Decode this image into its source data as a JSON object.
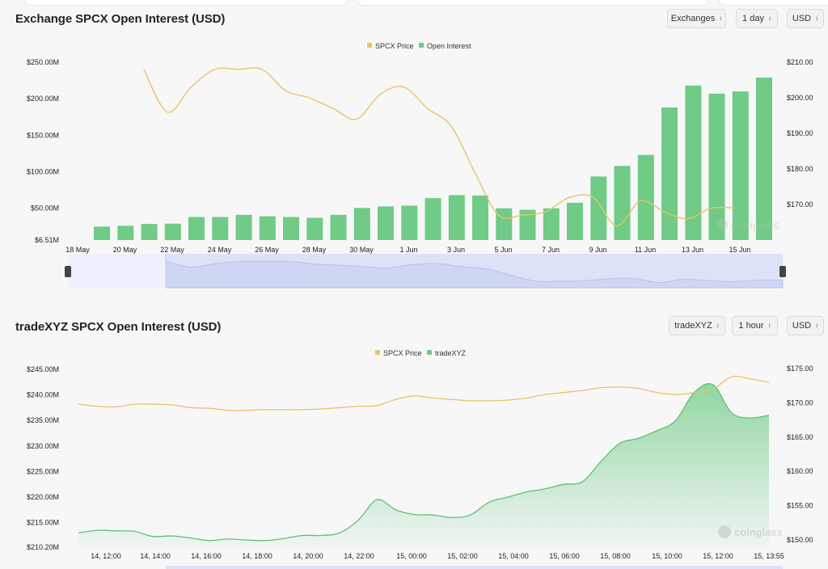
{
  "panel1": {
    "title": "Exchange SPCX Open Interest (USD)",
    "controls": {
      "exchange": "Exchanges",
      "interval": "1 day",
      "currency": "USD"
    },
    "watermark": "coinglass"
  },
  "panel2": {
    "title": "tradeXYZ SPCX Open Interest (USD)",
    "controls": {
      "exchange": "tradeXYZ",
      "interval": "1 hour",
      "currency": "USD"
    },
    "watermark": "coinglass"
  },
  "chart_data": [
    {
      "type": "bar",
      "series": [
        {
          "name": "SPCX Price",
          "type": "line",
          "axis": "right",
          "color": "#e8c468",
          "values": [
            null,
            null,
            null,
            208,
            196,
            203,
            208,
            208,
            208,
            202,
            200,
            197,
            194,
            201,
            203,
            197,
            192,
            179,
            167,
            167,
            168,
            172,
            172,
            164,
            171,
            168,
            166,
            169,
            169
          ]
        },
        {
          "name": "Open Interest",
          "type": "bar",
          "axis": "left",
          "color": "#6fcb85",
          "values": [
            25000000,
            26000000,
            28500000,
            29000000,
            38000000,
            38000000,
            41000000,
            39000000,
            38000000,
            37000000,
            41000000,
            50500000,
            52500000,
            53500000,
            64000000,
            68000000,
            67500000,
            50000000,
            48000000,
            50000000,
            57500000,
            93500000,
            108000000,
            123000000,
            188000000,
            218000000,
            207000000,
            210000000,
            229000000
          ]
        }
      ],
      "x": [
        "18 May",
        "19 May",
        "20 May",
        "21 May",
        "22 May",
        "23 May",
        "24 May",
        "25 May",
        "26 May",
        "27 May",
        "28 May",
        "29 May",
        "30 May",
        "31 May",
        "1 Jun",
        "2 Jun",
        "3 Jun",
        "4 Jun",
        "5 Jun",
        "6 Jun",
        "7 Jun",
        "8 Jun",
        "9 Jun",
        "10 Jun",
        "11 Jun",
        "12 Jun",
        "13 Jun",
        "14 Jun",
        "15 Jun"
      ],
      "x_tick_labels": [
        "18 May",
        "20 May",
        "22 May",
        "24 May",
        "26 May",
        "28 May",
        "30 May",
        "1 Jun",
        "3 Jun",
        "5 Jun",
        "7 Jun",
        "9 Jun",
        "11 Jun",
        "13 Jun",
        "15 Jun"
      ],
      "y_left_ticks": [
        "$250.00M",
        "$200.00M",
        "$150.00M",
        "$100.00M",
        "$50.00M",
        "$6.51M"
      ],
      "y_left_tick_values": [
        250000000,
        200000000,
        150000000,
        100000000,
        50000000,
        6510000
      ],
      "y_right_ticks": [
        "$210.00",
        "$200.00",
        "$190.00",
        "$180.00",
        "$170.00"
      ],
      "y_right_tick_values": [
        210,
        200,
        190,
        180,
        170
      ],
      "ylim": [
        6510000,
        250000000
      ],
      "ylim_right": [
        160,
        210
      ],
      "legend_position": "top-center"
    },
    {
      "type": "area",
      "series": [
        {
          "name": "SPCX Price",
          "type": "line",
          "axis": "right",
          "color": "#e8c468",
          "values": [
            169.8,
            169.5,
            169.4,
            169.8,
            169.8,
            169.7,
            169.3,
            169.2,
            168.9,
            168.9,
            169.0,
            169.0,
            169.0,
            169.1,
            169.3,
            169.5,
            169.6,
            170.5,
            171.0,
            170.7,
            170.5,
            170.3,
            170.3,
            170.4,
            170.7,
            171.2,
            171.5,
            171.8,
            172.2,
            172.3,
            172.1,
            171.5,
            171.2,
            171.5,
            172.0,
            173.8,
            173.5,
            173.0
          ]
        },
        {
          "name": "tradeXYZ",
          "type": "area",
          "axis": "left",
          "color": "#6fcb85",
          "values": [
            213.0,
            213.5,
            213.4,
            213.3,
            212.3,
            212.4,
            212.0,
            211.5,
            211.8,
            211.6,
            211.5,
            211.9,
            212.5,
            212.5,
            213.0,
            215.5,
            219.5,
            217.5,
            216.6,
            216.5,
            216.0,
            216.5,
            219.0,
            220.0,
            221.0,
            221.6,
            222.5,
            223.0,
            227.0,
            230.5,
            231.5,
            233.0,
            235.0,
            240.5,
            242.0,
            236.5,
            235.5,
            236.0
          ]
        }
      ],
      "x_tick_labels": [
        "14, 12:00",
        "14, 14:00",
        "14, 16:00",
        "14, 18:00",
        "14, 20:00",
        "14, 22:00",
        "15, 00:00",
        "15, 02:00",
        "15, 04:00",
        "15, 06:00",
        "15, 08:00",
        "15, 10:00",
        "15, 12:00",
        "15, 13:55"
      ],
      "y_left_ticks": [
        "$245.00M",
        "$240.00M",
        "$235.00M",
        "$230.00M",
        "$225.00M",
        "$220.00M",
        "$215.00M",
        "$210.20M"
      ],
      "y_left_tick_values": [
        245,
        240,
        235,
        230,
        225,
        220,
        215,
        210.2
      ],
      "y_right_ticks": [
        "$175.00",
        "$170.00",
        "$165.00",
        "$160.00",
        "$155.00",
        "$150.00"
      ],
      "y_right_tick_values": [
        175,
        170,
        165,
        160,
        155,
        150
      ],
      "ylim": [
        210.2,
        245
      ],
      "ylim_right": [
        150,
        175
      ],
      "legend_position": "top-center"
    }
  ]
}
